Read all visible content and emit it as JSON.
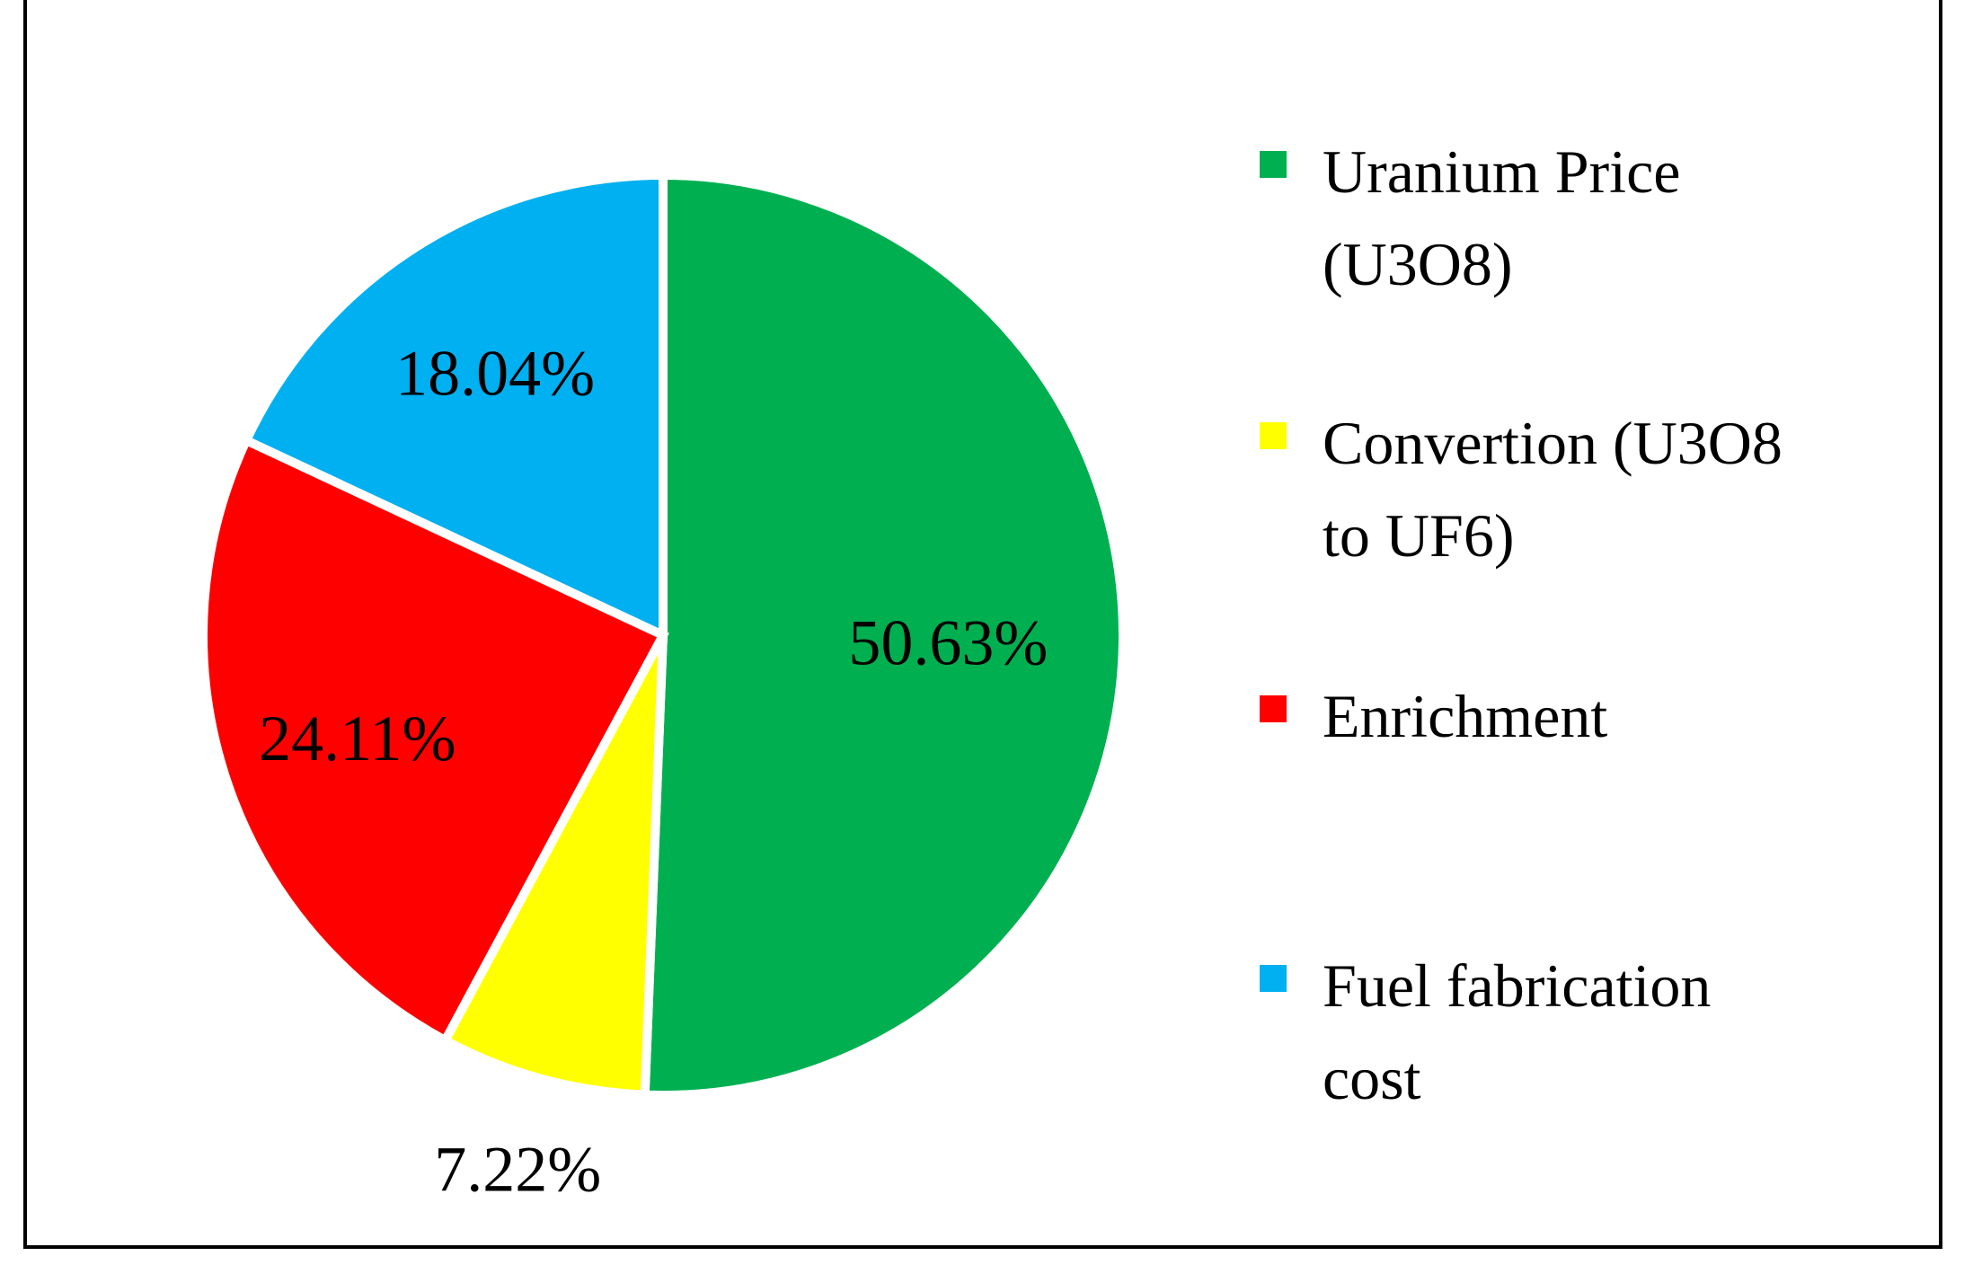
{
  "chart_data": {
    "type": "pie",
    "title": "",
    "categories": [
      "Uranium Price (U3O8)",
      "Convertion (U3O8 to UF6)",
      "Enrichment",
      "Fuel fabrication cost"
    ],
    "values": [
      50.63,
      7.22,
      24.11,
      18.04
    ],
    "data_labels": [
      "50.63%",
      "7.22%",
      "24.11%",
      "18.04%"
    ],
    "colors": [
      "#00b050",
      "#ffff00",
      "#ff0000",
      "#00b0f0"
    ],
    "start_angle": "12 o'clock",
    "direction": "clockwise",
    "legend_position": "right"
  },
  "legend": {
    "items": [
      {
        "label": "Uranium Price\n(U3O8)",
        "color": "#00b050"
      },
      {
        "label": "Convertion (U3O8\nto UF6)",
        "color": "#ffff00"
      },
      {
        "label": "Enrichment",
        "color": "#ff0000"
      },
      {
        "label": "Fuel fabrication\ncost",
        "color": "#00b0f0"
      }
    ]
  }
}
